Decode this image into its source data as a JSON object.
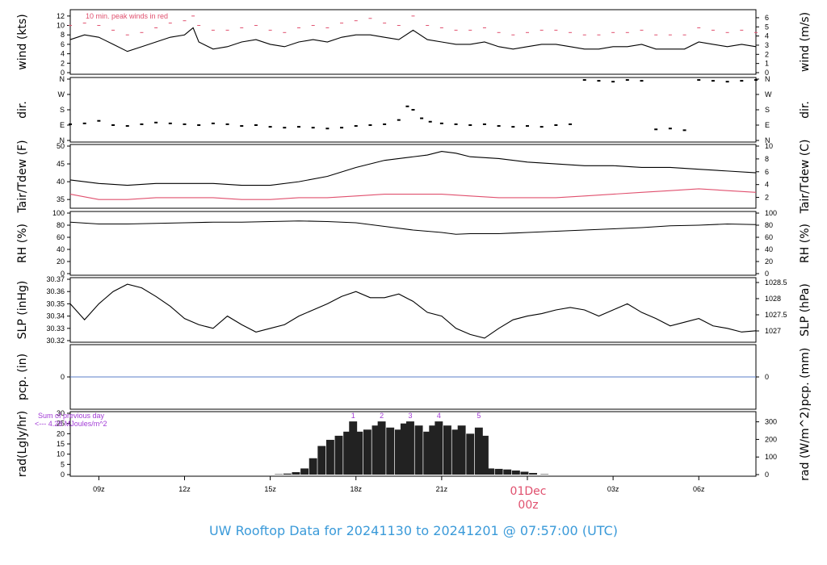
{
  "colors": {
    "accent_red": "#e0506e",
    "title_blue": "#3a9ad9",
    "precip_blue": "#5b7fc8",
    "purple": "#a23bd6",
    "axis": "#000000"
  },
  "footer_title": "UW Rooftop Data for 20241130  to  20241201 @ 07:57:00  (UTC)",
  "date_marker": {
    "day": "01Dec",
    "hour": "00z",
    "x_hour": 24
  },
  "chart_data": [
    {
      "type": "line",
      "id": "wind",
      "ylabel_left": "wind (kts)",
      "ylabel_right": "wind (m/s)",
      "ylim": [
        0,
        13
      ],
      "yticks": [
        0,
        2,
        4,
        6,
        8,
        10,
        12
      ],
      "right_ylim": [
        0,
        6.7
      ],
      "right_yticks": [
        0,
        1,
        2,
        3,
        4,
        5,
        6
      ],
      "annotation": "10 min. peak winds in red",
      "series": [
        {
          "kind": "sustained",
          "color": "black",
          "x": [
            8,
            8.5,
            9,
            9.5,
            10,
            10.5,
            11,
            11.5,
            12,
            12.3,
            12.5,
            13,
            13.5,
            14,
            14.5,
            15,
            15.5,
            16,
            16.5,
            17,
            17.5,
            18,
            18.5,
            19,
            19.5,
            20,
            20.5,
            21,
            21.5,
            22,
            22.5,
            23,
            23.5,
            24,
            24.5,
            25,
            25.5,
            26,
            26.5,
            27,
            27.5,
            28,
            28.5,
            29,
            29.5,
            30,
            30.5,
            31,
            31.5,
            32
          ],
          "values": [
            7,
            8,
            7.5,
            6,
            4.5,
            5.5,
            6.5,
            7.5,
            8,
            9.5,
            6.5,
            5,
            5.5,
            6.5,
            7,
            6,
            5.5,
            6.5,
            7,
            6.5,
            7.5,
            8,
            8,
            7.5,
            7,
            9,
            7,
            6.5,
            6,
            6,
            6.5,
            5.5,
            5,
            5.5,
            6,
            6,
            5.5,
            5,
            5,
            5.5,
            5.5,
            6,
            5,
            5,
            5,
            6.5,
            6,
            5.5,
            6,
            5.5
          ]
        },
        {
          "kind": "peak",
          "color": "red",
          "x": [
            8,
            8.5,
            9,
            9.5,
            10,
            10.5,
            11,
            11.5,
            12,
            12.3,
            12.5,
            13,
            13.5,
            14,
            14.5,
            15,
            15.5,
            16,
            16.5,
            17,
            17.5,
            18,
            18.5,
            19,
            19.5,
            20,
            20.5,
            21,
            21.5,
            22,
            22.5,
            23,
            23.5,
            24,
            24.5,
            25,
            25.5,
            26,
            26.5,
            27,
            27.5,
            28,
            28.5,
            29,
            29.5,
            30,
            30.5,
            31,
            31.5,
            32
          ],
          "values": [
            10,
            10.5,
            10,
            9,
            8,
            8.5,
            9.5,
            10.5,
            11,
            12,
            10,
            9,
            9,
            9.5,
            10,
            9,
            8.5,
            9.5,
            10,
            9.5,
            10.5,
            11,
            11.5,
            10.5,
            10,
            12,
            10,
            9.5,
            9,
            9,
            9.5,
            8.5,
            8,
            8.5,
            9,
            9,
            8.5,
            8,
            8,
            8.5,
            8.5,
            9,
            8,
            8,
            8,
            9.5,
            9,
            8.5,
            9,
            8.5
          ]
        }
      ]
    },
    {
      "type": "scatter",
      "id": "direction",
      "ylabel_left": "dir.",
      "ylabel_right": "dir.",
      "ylim": [
        0,
        360
      ],
      "yticks": [
        0,
        90,
        180,
        270,
        360
      ],
      "ytick_labels": [
        "N",
        "E",
        "S",
        "W",
        "N"
      ],
      "series": [
        {
          "name": "",
          "color": "black",
          "x": [
            8,
            8.5,
            9,
            9.5,
            10,
            10.5,
            11,
            11.5,
            12,
            12.5,
            13,
            13.5,
            14,
            14.5,
            15,
            15.5,
            16,
            16.5,
            17,
            17.5,
            18,
            18.5,
            19,
            19.5,
            19.8,
            20,
            20.3,
            20.6,
            21,
            21.5,
            22,
            22.5,
            23,
            23.5,
            24,
            24.5,
            25,
            25.5,
            26,
            26.5,
            27,
            27.5,
            28,
            28.5,
            29,
            29.5,
            30,
            30.5,
            31,
            31.5,
            32
          ],
          "values": [
            95,
            100,
            115,
            90,
            85,
            95,
            105,
            100,
            95,
            90,
            100,
            95,
            85,
            90,
            80,
            75,
            80,
            75,
            70,
            75,
            85,
            90,
            95,
            120,
            200,
            180,
            130,
            110,
            100,
            95,
            90,
            95,
            85,
            80,
            85,
            80,
            90,
            95,
            355,
            350,
            345,
            355,
            350,
            65,
            70,
            60,
            355,
            350,
            345,
            350,
            355
          ]
        }
      ]
    },
    {
      "type": "line",
      "id": "temperature",
      "ylabel_left": "Tair/Tdew (F)",
      "ylabel_right": "Tair/Tdew (C)",
      "ylim": [
        33,
        50
      ],
      "yticks": [
        35,
        40,
        45,
        50
      ],
      "right_ylim": [
        0.56,
        10
      ],
      "right_yticks": [
        2,
        4,
        6,
        8,
        10
      ],
      "series": [
        {
          "kind": "air",
          "color": "black",
          "x": [
            8,
            9,
            10,
            11,
            12,
            13,
            14,
            15,
            16,
            17,
            18,
            19,
            20,
            20.5,
            21,
            21.5,
            22,
            23,
            24,
            25,
            26,
            27,
            28,
            29,
            30,
            31,
            32
          ],
          "values": [
            40.5,
            39.5,
            39,
            39.5,
            39.5,
            39.5,
            39,
            39,
            40,
            41.5,
            44,
            46,
            47,
            47.5,
            48.5,
            48,
            47,
            46.5,
            45.5,
            45,
            44.5,
            44.5,
            44,
            44,
            43.5,
            43,
            42.5
          ]
        },
        {
          "kind": "dewpoint",
          "color": "red",
          "x": [
            8,
            9,
            10,
            11,
            12,
            13,
            14,
            15,
            16,
            17,
            18,
            19,
            20,
            21,
            22,
            23,
            24,
            25,
            26,
            27,
            28,
            29,
            30,
            31,
            32
          ],
          "values": [
            36.5,
            35,
            35,
            35.5,
            35.5,
            35.5,
            35,
            35,
            35.5,
            35.5,
            36,
            36.5,
            36.5,
            36.5,
            36,
            35.5,
            35.5,
            35.5,
            36,
            36.5,
            37,
            37.5,
            38,
            37.5,
            37
          ]
        }
      ]
    },
    {
      "type": "line",
      "id": "humidity",
      "ylabel_left": "RH (%)",
      "ylabel_right": "RH (%)",
      "ylim": [
        0,
        100
      ],
      "yticks": [
        0,
        20,
        40,
        60,
        80,
        100
      ],
      "right_yticks": [
        0,
        20,
        40,
        60,
        80,
        100
      ],
      "series": [
        {
          "name": "",
          "color": "black",
          "x": [
            8,
            9,
            10,
            11,
            12,
            13,
            14,
            15,
            16,
            17,
            18,
            19,
            20,
            21,
            21.5,
            22,
            23,
            24,
            25,
            26,
            27,
            28,
            29,
            30,
            31,
            32
          ],
          "values": [
            85,
            82,
            82,
            83,
            84,
            85,
            85,
            86,
            87,
            86,
            84,
            78,
            72,
            68,
            65,
            66,
            66,
            68,
            70,
            72,
            74,
            76,
            79,
            80,
            82,
            81
          ]
        }
      ]
    },
    {
      "type": "line",
      "id": "pressure",
      "ylabel_left": "SLP (inHg)",
      "ylabel_right": "SLP (hPa)",
      "ylim": [
        30.32,
        30.37
      ],
      "yticks": [
        30.32,
        30.33,
        30.34,
        30.35,
        30.36,
        30.37
      ],
      "right_ylim": [
        1026.7,
        1028.6
      ],
      "right_yticks": [
        1027,
        1027.5,
        1028,
        1028.5
      ],
      "series": [
        {
          "name": "",
          "color": "black",
          "x": [
            8,
            8.5,
            9,
            9.5,
            10,
            10.5,
            11,
            11.5,
            12,
            12.5,
            13,
            13.5,
            14,
            14.5,
            15,
            15.5,
            16,
            16.5,
            17,
            17.5,
            18,
            18.5,
            19,
            19.5,
            20,
            20.5,
            21,
            21.5,
            22,
            22.5,
            23,
            23.5,
            24,
            24.5,
            25,
            25.5,
            26,
            26.5,
            27,
            27.5,
            28,
            28.5,
            29,
            29.5,
            30,
            30.5,
            31,
            31.5,
            32
          ],
          "values": [
            30.35,
            30.337,
            30.35,
            30.36,
            30.366,
            30.363,
            30.356,
            30.348,
            30.338,
            30.333,
            30.33,
            30.34,
            30.333,
            30.327,
            30.33,
            30.333,
            30.34,
            30.345,
            30.35,
            30.356,
            30.36,
            30.355,
            30.355,
            30.358,
            30.352,
            30.343,
            30.34,
            30.33,
            30.325,
            30.322,
            30.33,
            30.337,
            30.34,
            30.342,
            30.345,
            30.347,
            30.345,
            30.34,
            30.345,
            30.35,
            30.343,
            30.338,
            30.332,
            30.335,
            30.338,
            30.332,
            30.33,
            30.327,
            30.328
          ]
        }
      ]
    },
    {
      "type": "line",
      "id": "precipitation",
      "ylabel_left": "pcp. (in)",
      "ylabel_right": "pcp. (mm)",
      "ylim": [
        -1,
        1
      ],
      "yticks": [
        0
      ],
      "right_yticks": [
        0
      ],
      "series": [
        {
          "name": "",
          "color": "blue",
          "x": [
            8,
            32
          ],
          "values": [
            0,
            0
          ]
        }
      ]
    },
    {
      "type": "bar",
      "id": "radiation",
      "ylabel_left": "rad(Lgly/hr)",
      "ylabel_right": "rad (W/m^2)",
      "ylim": [
        0,
        30
      ],
      "yticks": [
        0,
        5,
        10,
        15,
        20,
        25,
        30
      ],
      "right_ylim": [
        0,
        348.7
      ],
      "right_yticks": [
        0,
        100,
        200,
        300
      ],
      "annotation_line1": "Sum of previous day",
      "annotation_line2": "<--- 4.28 MJoules/m^2",
      "peak_labels": [
        {
          "label": "1",
          "x": 17.9
        },
        {
          "label": "2",
          "x": 18.9
        },
        {
          "label": "3",
          "x": 19.9
        },
        {
          "label": "4",
          "x": 20.9
        },
        {
          "label": "5",
          "x": 22.3
        }
      ],
      "x": [
        15.3,
        15.6,
        15.9,
        16.2,
        16.5,
        16.8,
        17.1,
        17.4,
        17.7,
        17.9,
        18.1,
        18.4,
        18.7,
        18.9,
        19.2,
        19.5,
        19.7,
        19.9,
        20.2,
        20.5,
        20.7,
        20.9,
        21.2,
        21.5,
        21.7,
        22.0,
        22.3,
        22.5,
        22.7,
        23.0,
        23.3,
        23.6,
        23.9,
        24.2,
        24.6
      ],
      "values": [
        0.2,
        0.5,
        1.2,
        3,
        8,
        14,
        17,
        19,
        21,
        26,
        21,
        22,
        24,
        26,
        23,
        22,
        25,
        26,
        24,
        21,
        24,
        26,
        24,
        22,
        24,
        20,
        23,
        19,
        3,
        2.8,
        2.5,
        2,
        1.4,
        0.8,
        0.2
      ]
    }
  ],
  "x_axis": {
    "range_hours": [
      8,
      32
    ],
    "ticks": [
      {
        "label": "09z",
        "x": 9
      },
      {
        "label": "12z",
        "x": 12
      },
      {
        "label": "15z",
        "x": 15
      },
      {
        "label": "18z",
        "x": 18
      },
      {
        "label": "21z",
        "x": 21
      },
      {
        "label": "00z",
        "x": 24
      },
      {
        "label": "03z",
        "x": 27
      },
      {
        "label": "06z",
        "x": 30
      }
    ]
  }
}
